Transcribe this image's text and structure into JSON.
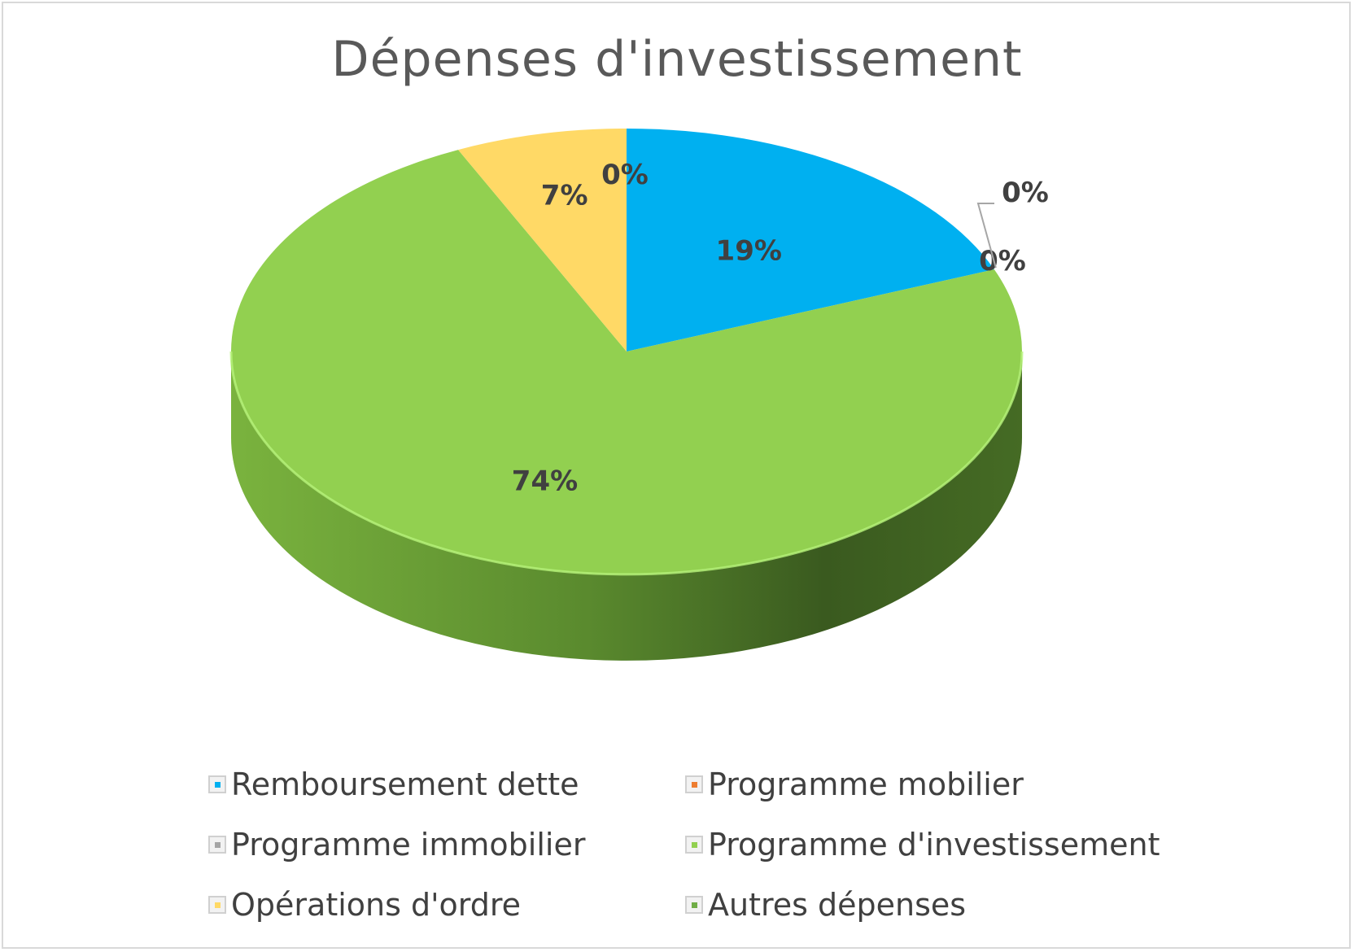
{
  "chart_data": {
    "type": "pie",
    "title": "Dépenses d'investissement",
    "categories": [
      "Remboursement dette",
      "Programme mobilier",
      "Programme immobilier",
      "Programme d'investissement",
      "Opérations d'ordre",
      "Autres dépenses"
    ],
    "values": [
      19,
      0,
      0,
      74,
      7,
      0
    ],
    "data_labels": [
      "19%",
      "0%",
      "0%",
      "74%",
      "7%",
      "0%"
    ],
    "colors": [
      "#00b0f0",
      "#ed7d31",
      "#a5a5a5",
      "#92d050",
      "#ffd966",
      "#70ad47"
    ],
    "legend_position": "bottom",
    "style": "3d-pie"
  }
}
